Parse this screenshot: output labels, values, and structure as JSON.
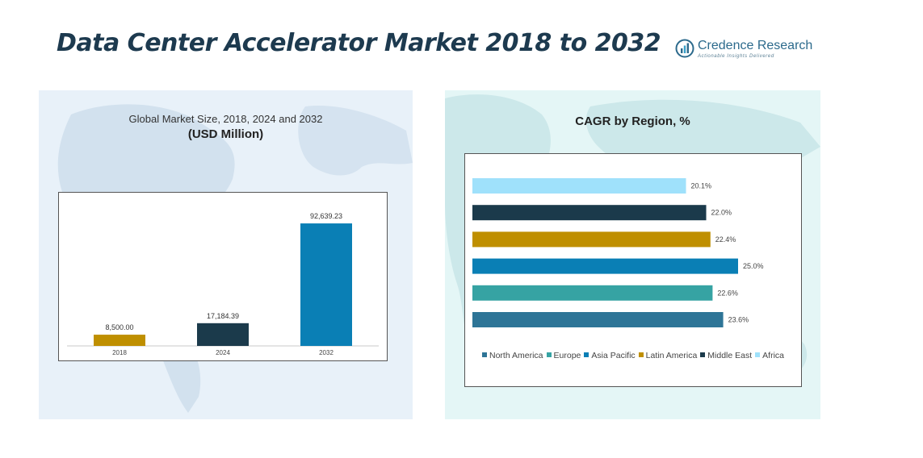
{
  "header": {
    "title": "Data Center Accelerator Market 2018 to 2032",
    "logo_name": "Credence Research",
    "logo_tagline": "Actionable Insights Delivered"
  },
  "left_panel": {
    "subtitle": "Global Market Size, 2018, 2024 and 2032",
    "unit": "(USD Million)"
  },
  "right_panel": {
    "title": "CAGR by Region, %"
  },
  "chart_data": [
    {
      "type": "bar",
      "title": "Global Market Size, 2018, 2024 and 2032",
      "ylabel": "(USD Million)",
      "categories": [
        "2018",
        "2024",
        "2032"
      ],
      "values": [
        8500.0,
        17184.39,
        92639.23
      ],
      "value_labels": [
        "8,500.00",
        "17,184.39",
        "92,639.23"
      ],
      "colors": [
        "#bf8f00",
        "#1b3a4b",
        "#0a7fb5"
      ],
      "ylim": [
        0,
        100000
      ],
      "grid": false
    },
    {
      "type": "bar",
      "orientation": "horizontal",
      "title": "CAGR by Region, %",
      "categories": [
        "North America",
        "Europe",
        "Asia Pacific",
        "Latin America",
        "Middle East",
        "Africa"
      ],
      "values": [
        23.6,
        22.6,
        25.0,
        22.4,
        22.0,
        20.1
      ],
      "value_labels": [
        "23.6%",
        "22.6%",
        "25.0%",
        "22.4%",
        "22.0%",
        "20.1%"
      ],
      "colors": [
        "#2e7597",
        "#36a3a3",
        "#0a7fb5",
        "#bf8f00",
        "#1b3a4b",
        "#9fe1fb"
      ],
      "xlim": [
        0,
        25
      ],
      "legend_position": "bottom",
      "grid": false
    }
  ]
}
